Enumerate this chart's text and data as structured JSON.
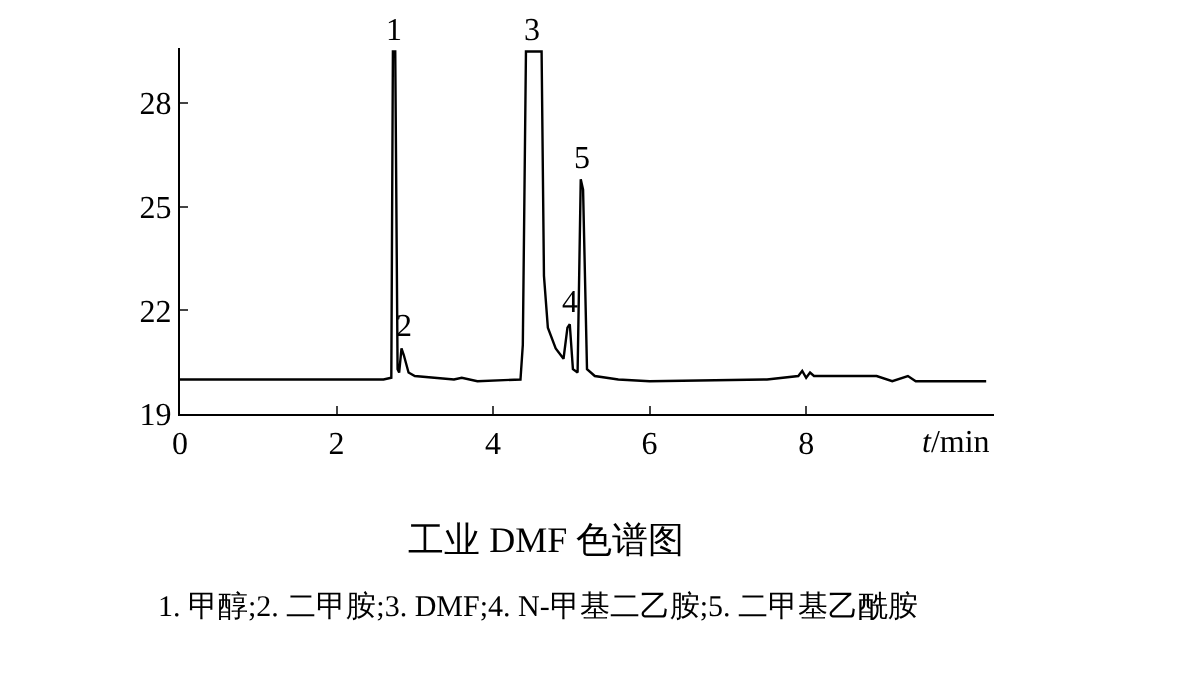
{
  "chart_data": {
    "type": "line",
    "title": "工业 DMF 色谱图",
    "xlabel": "t/min",
    "x": [
      0,
      2.6,
      2.7,
      2.72,
      2.75,
      2.78,
      2.8,
      2.83,
      2.86,
      2.92,
      3.0,
      3.5,
      3.6,
      3.8,
      4.35,
      4.38,
      4.42,
      4.62,
      4.65,
      4.7,
      4.8,
      4.9,
      4.95,
      4.98,
      5.02,
      5.08,
      5.12,
      5.15,
      5.2,
      5.3,
      5.6,
      6.0,
      7.5,
      7.9,
      7.95,
      8.0,
      8.05,
      8.1,
      8.9,
      9.1,
      9.3,
      9.4,
      10.3
    ],
    "series": [
      {
        "color": "#000000",
        "values": [
          20.0,
          20.0,
          20.05,
          29.5,
          29.5,
          20.3,
          20.2,
          20.9,
          20.7,
          20.2,
          20.1,
          20.0,
          20.05,
          19.95,
          20.0,
          21.0,
          29.5,
          29.5,
          23.0,
          21.5,
          20.9,
          20.6,
          21.5,
          21.6,
          20.3,
          20.2,
          25.8,
          25.5,
          20.3,
          20.1,
          20.0,
          19.95,
          20.0,
          20.1,
          20.25,
          20.05,
          20.2,
          20.1,
          20.1,
          19.95,
          20.1,
          19.95,
          19.95
        ]
      }
    ],
    "xlim": [
      0,
      10.4
    ],
    "ylim": [
      19,
      29.6
    ],
    "xticks": [
      0,
      2,
      4,
      6,
      8
    ],
    "yticks": [
      19,
      22,
      25,
      28
    ],
    "grid": false,
    "marker": "none",
    "line_style": "solid",
    "annotations": [
      {
        "text": "1",
        "x": 2.73,
        "y": 29.5
      },
      {
        "text": "2",
        "x": 2.85,
        "y": 20.9
      },
      {
        "text": "3",
        "x": 4.5,
        "y": 29.5
      },
      {
        "text": "4",
        "x": 4.98,
        "y": 21.6
      },
      {
        "text": "5",
        "x": 5.13,
        "y": 25.8
      },
      "1. 甲醇;2. 二甲胺;3. DMF;4. N-甲基二乙胺;5. 二甲基乙酰胺"
    ]
  }
}
